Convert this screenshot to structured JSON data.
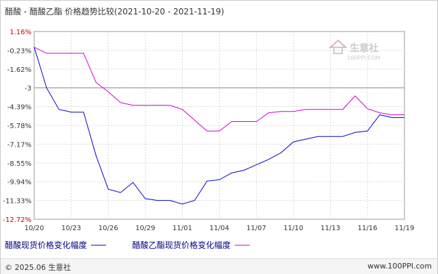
{
  "chart_data": {
    "type": "line",
    "title": "醋酸 - 醋酸乙酯 价格趋势比较(2021-10-20 - 2021-11-19)",
    "x_ticks": [
      "10/20",
      "10/23",
      "10/26",
      "10/29",
      "11/01",
      "11/04",
      "11/07",
      "11/10",
      "11/13",
      "11/16",
      "11/19"
    ],
    "y_ticks": [
      "1.16%",
      "-0.23%",
      "-1.62%",
      "-3",
      "-4.39%",
      "-5.78%",
      "-7.17%",
      "-8.55%",
      "-9.94%",
      "-11.33%",
      "-12.72%"
    ],
    "ylim": [
      -12.72,
      1.16
    ],
    "baseline": -3,
    "grid": true,
    "legend_position": "bottom",
    "series": [
      {
        "name": "醋酸现货价格变化幅度",
        "color": "#0000cc",
        "x": [
          0,
          1,
          2,
          3,
          4,
          5,
          6,
          7,
          8,
          9,
          10,
          11,
          12,
          13,
          14,
          15,
          16,
          17,
          18,
          19,
          20,
          21,
          22,
          23,
          24,
          25,
          26,
          27,
          28,
          29,
          30
        ],
        "values": [
          0.0,
          -3.0,
          -4.6,
          -4.8,
          -4.8,
          -8.0,
          -10.5,
          -10.75,
          -10.0,
          -11.2,
          -11.33,
          -11.33,
          -11.6,
          -11.33,
          -9.9,
          -9.8,
          -9.3,
          -9.1,
          -8.7,
          -8.3,
          -7.8,
          -7.0,
          -6.8,
          -6.6,
          -6.6,
          -6.6,
          -6.3,
          -6.2,
          -5.0,
          -5.2,
          -5.2
        ]
      },
      {
        "name": "醋酸乙酯现货价格变化幅度",
        "color": "#cc00cc",
        "x": [
          0,
          1,
          2,
          3,
          4,
          5,
          6,
          7,
          8,
          9,
          10,
          11,
          12,
          13,
          14,
          15,
          16,
          17,
          18,
          19,
          20,
          21,
          22,
          23,
          24,
          25,
          26,
          27,
          28,
          29,
          30
        ],
        "values": [
          0.0,
          -0.45,
          -0.45,
          -0.45,
          -0.45,
          -2.6,
          -3.3,
          -4.1,
          -4.3,
          -4.3,
          -4.3,
          -4.3,
          -4.6,
          -5.4,
          -6.2,
          -6.2,
          -5.5,
          -5.5,
          -5.5,
          -4.85,
          -4.75,
          -4.75,
          -4.6,
          -4.6,
          -4.6,
          -4.6,
          -3.6,
          -4.55,
          -4.85,
          -5.0,
          -5.0
        ]
      }
    ]
  },
  "footer": {
    "copyright": "© 2025.06 生意社",
    "site": "www.100PPI.com"
  },
  "watermark": {
    "text": "生意社",
    "url": "100PPI.COM"
  }
}
